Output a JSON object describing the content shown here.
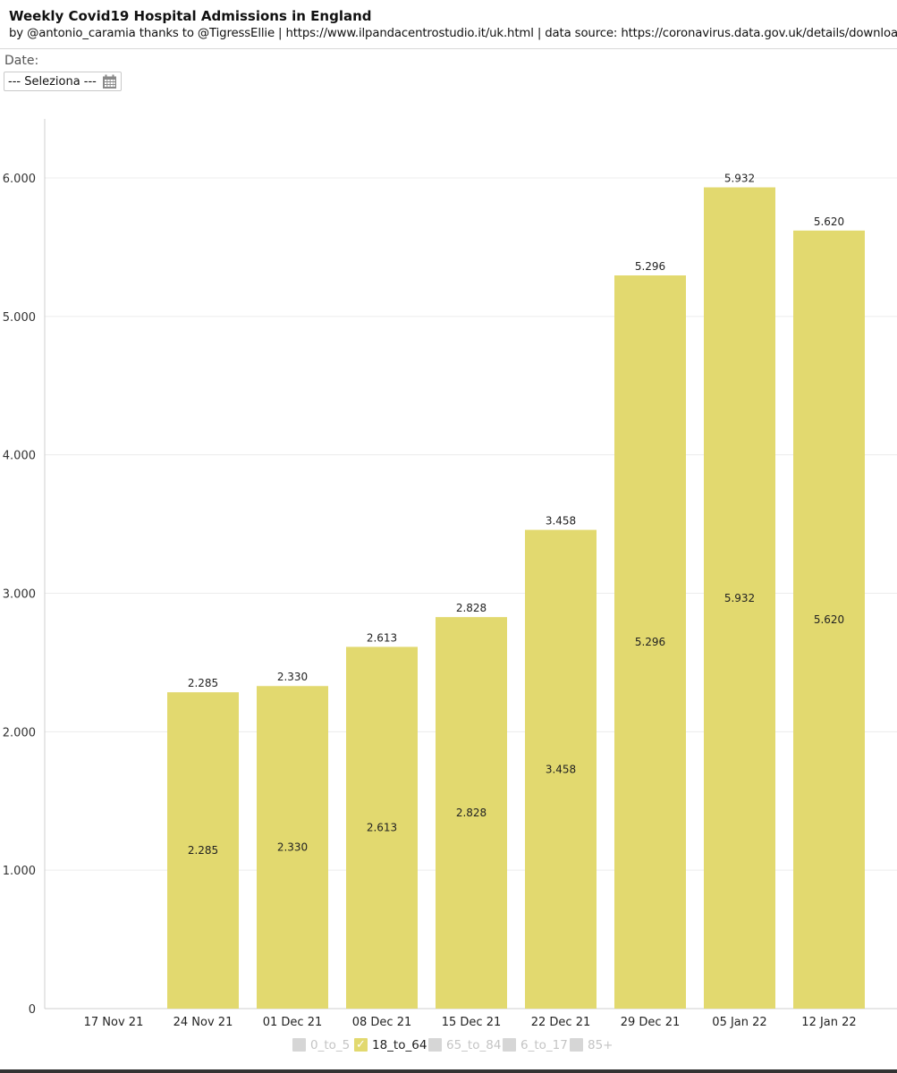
{
  "header": {
    "title": "Weekly Covid19 Hospital Admissions in England",
    "subtitle": "by @antonio_caramia thanks to @TigressEllie | https://www.ilpandacentrostudio.it/uk.html | data source: https://coronavirus.data.gov.uk/details/download"
  },
  "filter": {
    "label": "Date:",
    "select_value": "--- Seleziona ---",
    "icon": "calendar-icon"
  },
  "colors": {
    "bar": "#e2d96f",
    "grid": "#ececec",
    "axis": "#cfcfcf",
    "legend_inactive": "#d6d6d6",
    "legend_inactive_text": "#c4c4c4"
  },
  "chart_data": {
    "type": "bar",
    "title": "",
    "xlabel": "",
    "ylabel": "",
    "ylim": [
      0,
      6000
    ],
    "yticks": [
      0,
      1000,
      2000,
      3000,
      4000,
      5000,
      6000
    ],
    "ytick_labels": [
      "0",
      "1.000",
      "2.000",
      "3.000",
      "4.000",
      "5.000",
      "6.000"
    ],
    "categories": [
      "17 Nov 21",
      "24 Nov 21",
      "01 Dec 21",
      "08 Dec 21",
      "15 Dec 21",
      "22 Dec 21",
      "29 Dec 21",
      "05 Jan 22",
      "12 Jan 22"
    ],
    "series": [
      {
        "name": "18_to_64",
        "values": [
          null,
          2285,
          2330,
          2613,
          2828,
          3458,
          5296,
          5932,
          5620
        ],
        "top_labels": [
          "",
          "2.285",
          "2.330",
          "2.613",
          "2.828",
          "3.458",
          "5.296",
          "5.932",
          "5.620"
        ],
        "inner_labels": [
          "",
          "2.285",
          "2.330",
          "2.613",
          "2.828",
          "3.458",
          "5.296",
          "5.932",
          "5.620"
        ]
      }
    ],
    "grid": true,
    "legend_position": "bottom-center",
    "legend": [
      {
        "name": "0_to_5",
        "active": false
      },
      {
        "name": "18_to_64",
        "active": true
      },
      {
        "name": "65_to_84",
        "active": false
      },
      {
        "name": "6_to_17",
        "active": false
      },
      {
        "name": "85+",
        "active": false
      }
    ]
  }
}
